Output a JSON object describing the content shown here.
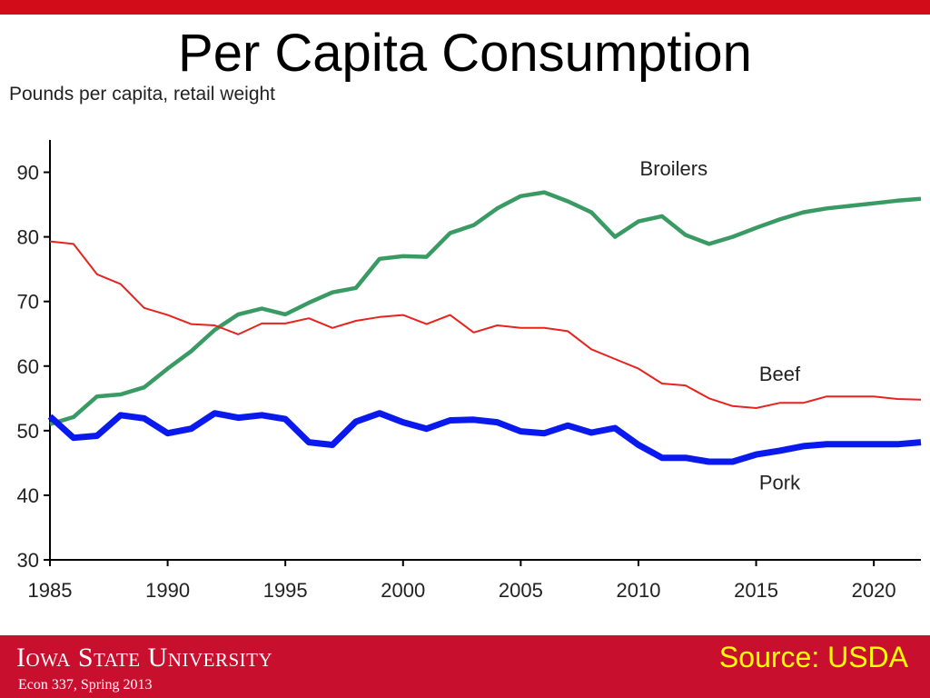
{
  "slide": {
    "title": "Per Capita Consumption",
    "footer": {
      "university": "Iowa State University",
      "course": "Econ 337, Spring 2013",
      "source": "Source: USDA"
    }
  },
  "chart_data": {
    "type": "line",
    "title": "",
    "ylabel": "Pounds per capita, retail weight",
    "xlabel": "",
    "xlim": [
      1985,
      2022
    ],
    "ylim": [
      30,
      95
    ],
    "x_ticks": [
      1985,
      1990,
      1995,
      2000,
      2005,
      2010,
      2015,
      2020
    ],
    "y_ticks": [
      30,
      40,
      50,
      60,
      70,
      80,
      90
    ],
    "grid": false,
    "legend": "inline labels",
    "x": [
      1985,
      1986,
      1987,
      1988,
      1989,
      1990,
      1991,
      1992,
      1993,
      1994,
      1995,
      1996,
      1997,
      1998,
      1999,
      2000,
      2001,
      2002,
      2003,
      2004,
      2005,
      2006,
      2007,
      2008,
      2009,
      2010,
      2011,
      2012,
      2013,
      2014,
      2015,
      2016,
      2017,
      2018,
      2019,
      2020,
      2021,
      2022
    ],
    "series": [
      {
        "name": "Broilers",
        "color": "#3a9a63",
        "values": [
          51.0,
          52.1,
          55.3,
          55.6,
          56.7,
          59.6,
          62.3,
          65.6,
          68.0,
          68.9,
          68.0,
          69.8,
          71.4,
          72.1,
          76.6,
          77.0,
          76.9,
          80.6,
          81.8,
          84.4,
          86.3,
          86.9,
          85.5,
          83.8,
          80.0,
          82.4,
          83.2,
          80.3,
          78.9,
          80.0,
          81.4,
          82.7,
          83.8,
          84.4,
          84.8,
          85.2,
          85.6,
          85.9
        ]
      },
      {
        "name": "Beef",
        "color": "#e8231e",
        "values": [
          79.3,
          78.9,
          74.2,
          72.7,
          69.0,
          67.9,
          66.5,
          66.3,
          64.9,
          66.6,
          66.6,
          67.4,
          65.9,
          67.0,
          67.6,
          67.9,
          66.5,
          67.9,
          65.2,
          66.3,
          65.9,
          65.9,
          65.4,
          62.6,
          61.1,
          59.6,
          57.3,
          57.0,
          55.0,
          53.8,
          53.5,
          54.3,
          54.3,
          55.3,
          55.3,
          55.3,
          54.9,
          54.8
        ]
      },
      {
        "name": "Pork",
        "color": "#0a1aee",
        "values": [
          52.2,
          48.9,
          49.2,
          52.4,
          51.9,
          49.6,
          50.3,
          52.7,
          52.0,
          52.4,
          51.8,
          48.2,
          47.8,
          51.4,
          52.7,
          51.3,
          50.3,
          51.6,
          51.7,
          51.3,
          49.9,
          49.6,
          50.8,
          49.7,
          50.4,
          47.8,
          45.8,
          45.8,
          45.2,
          45.2,
          46.3,
          46.9,
          47.6,
          47.9,
          47.9,
          47.9,
          47.9,
          48.2
        ]
      }
    ]
  }
}
